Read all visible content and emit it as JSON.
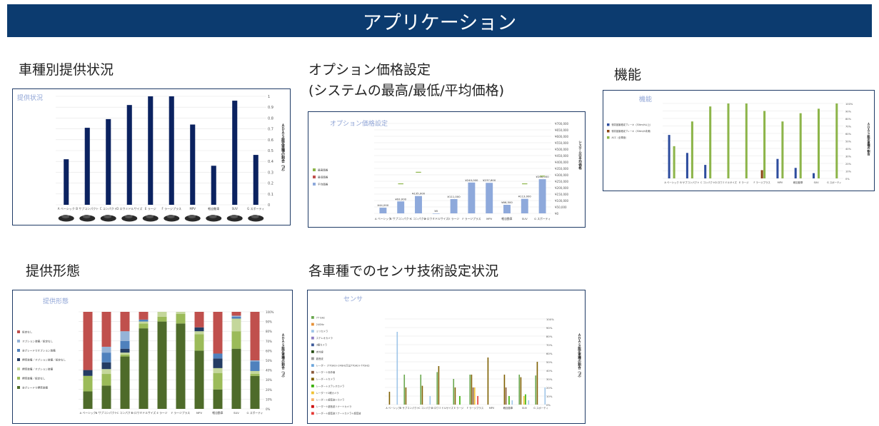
{
  "page": {
    "banner_title": "アプリケーション",
    "sections": {
      "provision_status": "車種別提供状況",
      "option_price": "オプション価格設定",
      "option_price_sub": "(システムの最高/最低/平均価格)",
      "functions": "機能",
      "provision_form": "提供形態",
      "sensor_tech": "各車種でのセンサ技術設定状況"
    },
    "colors": {
      "banner_bg": "#0c3b6f",
      "navy": "#0b2260",
      "green": "#8db54a",
      "red": "#c0504d",
      "blue": "#8ea9db"
    }
  },
  "chart_data": [
    {
      "id": "provision",
      "type": "bar",
      "title": "提供状況",
      "ylabel": "ＡＤＡＳ設定車種の割合（%）",
      "categories": [
        "A ベーシック",
        "B サブコンパクト",
        "C コンパクト",
        "D ロワミドルサイズ",
        "E ラージ",
        "F ラージプラス",
        "MPV",
        "軽自動車",
        "SUV",
        "G スポーティ"
      ],
      "values": [
        0.42,
        0.71,
        0.79,
        0.92,
        1.0,
        1.0,
        0.74,
        0.36,
        0.96,
        0.46
      ],
      "ylim": [
        0,
        1
      ],
      "yticks": [
        "0",
        "0.1",
        "0.2",
        "0.3",
        "0.4",
        "0.5",
        "0.6",
        "0.7",
        "0.8",
        "0.9",
        "1"
      ],
      "color": "#0b2260",
      "car_thumbnails": true
    },
    {
      "id": "price",
      "type": "bar",
      "title": "オプション価格設定",
      "ylabel": "システムの平均価格",
      "categories": [
        "A ベーシック",
        "B サブコンパクト",
        "C コンパクト",
        "D ロワミドルサイズ",
        "E ラージ",
        "F ラージプラス",
        "MPV",
        "軽自動車",
        "SUV",
        "G スポーティ"
      ],
      "legend": [
        "最高価格",
        "最低価格",
        "平均価格"
      ],
      "series": [
        {
          "name": "最高価格",
          "kind": "marker",
          "color": "#8db54a",
          "values": [
            null,
            230000,
            320000,
            null,
            null,
            null,
            null,
            null,
            230000,
            290000
          ]
        },
        {
          "name": "最低価格",
          "kind": "marker",
          "color": "#c0504d",
          "values": [
            null,
            null,
            null,
            null,
            null,
            null,
            null,
            null,
            null,
            null
          ]
        },
        {
          "name": "平均価格",
          "kind": "bar",
          "color": "#8ea9db",
          "values": [
            44000,
            93000,
            135000,
            0,
            111000,
            240000,
            237600,
            66500,
            113000,
            266000
          ]
        }
      ],
      "data_labels": [
        "¥44,000",
        "¥93,000",
        "¥135,000",
        "¥0",
        "¥111,000",
        "¥240,000",
        "¥237,600",
        "¥66,500",
        "¥113,000",
        "¥266,000"
      ],
      "ylim": [
        0,
        700000
      ],
      "yticks": [
        "¥0",
        "¥50,000",
        "¥100,000",
        "¥150,000",
        "¥200,000",
        "¥250,000",
        "¥300,000",
        "¥350,000",
        "¥400,000",
        "¥450,000",
        "¥500,000",
        "¥550,000",
        "¥600,000",
        "¥650,000",
        "¥700,000"
      ]
    },
    {
      "id": "function",
      "type": "bar",
      "title": "機能",
      "ylabel": "ＡＤＡＳ設定車種の割合",
      "categories": [
        "A ベーシック",
        "B サブコンパクト",
        "C コンパクト",
        "D ロワミドルサイズ",
        "E ラージ",
        "F ラージプラス",
        "MPV",
        "軽自動車",
        "SUV",
        "G スポーティ"
      ],
      "legend": [
        "衝突被害軽減ブレーキ（30km/h以上）",
        "衝突被害軽減ブレーキ（30km/h未満）",
        "ACC（全車速）"
      ],
      "series": [
        {
          "name": "衝突被害軽減ブレーキ（30km/h以上）",
          "color": "#2e4d9e",
          "values": [
            0.58,
            0.34,
            0.18,
            0,
            0,
            0,
            0.26,
            0.14,
            0.07,
            0
          ]
        },
        {
          "name": "衝突被害軽減ブレーキ（30km/h未満）",
          "color": "#8b4513",
          "values": [
            0,
            0,
            0,
            0,
            0,
            0.11,
            0,
            0,
            0,
            0
          ]
        },
        {
          "name": "ACC（全車速）",
          "color": "#8db54a",
          "values": [
            0.43,
            0.76,
            0.96,
            1.0,
            1.0,
            0.9,
            0.76,
            0.87,
            0.93,
            1.0
          ]
        }
      ],
      "ylim": [
        0,
        1
      ],
      "yticks": [
        "0%",
        "10%",
        "20%",
        "30%",
        "40%",
        "50%",
        "60%",
        "70%",
        "80%",
        "90%",
        "100%"
      ]
    },
    {
      "id": "form",
      "type": "bar",
      "stacked": true,
      "title": "提供形態",
      "ylabel": "ＡＤＡＳ設定車種の割合（%）",
      "categories": [
        "A ベーシック",
        "B サブコンパクト",
        "C コンパクト",
        "D ロワミドルサイズ",
        "E ラージ",
        "F ラージプラス",
        "MPV",
        "軽自動車",
        "SUV",
        "G スポーティ"
      ],
      "legend": [
        "全グレードで標準装備",
        "標準装備／設定なし",
        "標準装備／オプション装備",
        "標準装備／オプション装備／設定なし",
        "全グレードでオプション装備",
        "オプション装備／設定なし",
        "設定なし"
      ],
      "series": [
        {
          "name": "全グレードで標準装備",
          "color": "#4e6b2a",
          "values": [
            0.18,
            0.24,
            0.54,
            0.83,
            0.9,
            0.88,
            0.6,
            0.2,
            0.62,
            0.34
          ]
        },
        {
          "name": "標準装備／設定なし",
          "color": "#9bbb59",
          "values": [
            0.16,
            0.12,
            0.02,
            0.05,
            0.05,
            0.1,
            0.17,
            0.17,
            0.18,
            0.02
          ]
        },
        {
          "name": "標準装備／オプション装備",
          "color": "#c4d79b",
          "values": [
            0,
            0.05,
            0.02,
            0.02,
            0.05,
            0.02,
            0.03,
            0.05,
            0.13,
            0.03
          ]
        },
        {
          "name": "標準装備／オプション装備／設定なし",
          "color": "#243c63",
          "values": [
            0.06,
            0.07,
            0.04,
            0,
            0,
            0,
            0.04,
            0.1,
            0,
            0
          ]
        },
        {
          "name": "全グレードでオプション装備",
          "color": "#4f81bd",
          "values": [
            0,
            0.1,
            0.08,
            0.02,
            0,
            0,
            0,
            0.05,
            0.02,
            0.1
          ]
        },
        {
          "name": "オプション装備／設定なし",
          "color": "#95b3d7",
          "values": [
            0,
            0.06,
            0.1,
            0,
            0,
            0,
            0,
            0,
            0.01,
            0.01
          ]
        },
        {
          "name": "設定なし",
          "color": "#c0504d",
          "values": [
            0.6,
            0.36,
            0.2,
            0.08,
            0,
            0,
            0.16,
            0.43,
            0.04,
            0.5
          ]
        }
      ],
      "ylim": [
        0,
        1
      ],
      "yticks": [
        "0%",
        "10%",
        "20%",
        "30%",
        "40%",
        "50%",
        "60%",
        "70%",
        "80%",
        "90%",
        "100%"
      ]
    },
    {
      "id": "sensor",
      "type": "bar",
      "title": "センサ",
      "ylabel": "ＡＤＡＳ設定車種の割合（%）",
      "categories": [
        "A ベーシック",
        "B サブコンパクト",
        "C コンパクト",
        "D ロワミドルサイズ",
        "E ラージ",
        "F ラージプラス",
        "MPV",
        "軽自動車",
        "SUV",
        "G スポーティ"
      ],
      "legend": [
        "77 GHz",
        "24GHz",
        "ミリカメラ",
        "ステレオカメラ",
        "3眼カメラ",
        "赤外線",
        "超音波",
        "レーダー（77GHz＋24GHz又は77GHz＋77GHz）",
        "レーダー＋赤外線",
        "レーダー＋カメラ",
        "レーダー＋ステレオカメラ",
        "レーダー＋2眼カメラ",
        "レーダー＋超音波＋カメラ",
        "レーダー＋超音波ソナー＋カメラ",
        "レーダー＋超音波ソナー＋カメラ＋超音波"
      ],
      "series": [
        {
          "name": "77 GHz",
          "color": "#6aa84f",
          "values": [
            0,
            0.35,
            0.35,
            0.38,
            0.3,
            0.35,
            0,
            0,
            0.35,
            0.34
          ]
        },
        {
          "name": "赤外線",
          "color": "#7f6000",
          "values": [
            0.15,
            0.2,
            0.22,
            0.45,
            0.2,
            0.35,
            0.55,
            0.35,
            0.32,
            0.5
          ]
        },
        {
          "name": "レーダー＋赤外線",
          "color": "#8b5a3c",
          "values": [
            0,
            0,
            0,
            0,
            0,
            0.2,
            0,
            0.2,
            0,
            0
          ]
        },
        {
          "name": "レーダー＋2眼カメラ",
          "color": "#f1c232",
          "values": [
            0,
            0,
            0,
            0,
            0,
            0.2,
            0,
            0,
            0.1,
            0
          ]
        },
        {
          "name": "レーダー＋ステレオカメラ",
          "color": "#38b000",
          "values": [
            0,
            0,
            0,
            0,
            0.1,
            0,
            0,
            0.1,
            0.12,
            0
          ]
        },
        {
          "name": "レーダー＋超音波ソナー＋カメラ＋超音波",
          "color": "#e53935",
          "values": [
            0,
            0,
            0,
            0,
            0,
            0.1,
            0,
            0,
            0,
            0
          ]
        },
        {
          "name": "ミリカメラ",
          "color": "#9fc5e8",
          "values": [
            0.85,
            0,
            0.1,
            0,
            0,
            0,
            0,
            0.05,
            0.05,
            0.2
          ]
        }
      ],
      "ylim": [
        0,
        1
      ],
      "yticks": [
        "0%",
        "10%",
        "20%",
        "30%",
        "40%",
        "50%",
        "60%",
        "70%",
        "80%",
        "90%",
        "100%"
      ]
    }
  ]
}
